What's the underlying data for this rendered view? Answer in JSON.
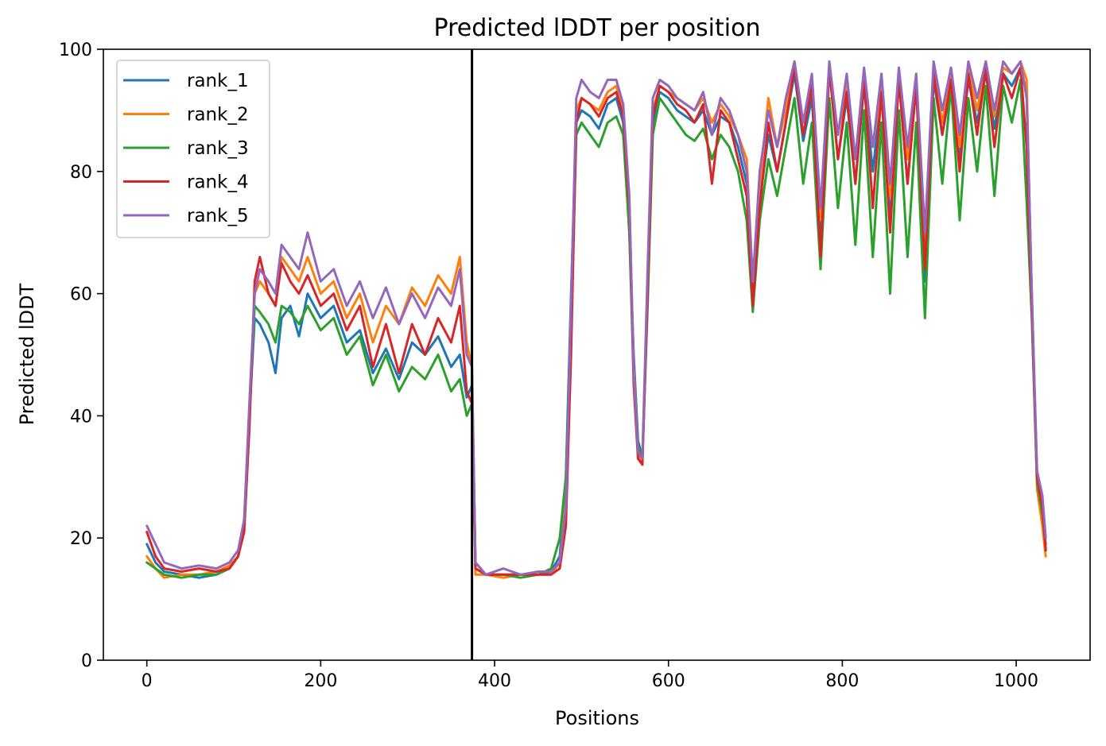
{
  "chart_data": {
    "type": "line",
    "title": "Predicted lDDT per position",
    "xlabel": "Positions",
    "ylabel": "Predicted lDDT",
    "xlim": [
      -50,
      1085
    ],
    "ylim": [
      0,
      100
    ],
    "xticks": [
      0,
      200,
      400,
      600,
      800,
      1000
    ],
    "yticks": [
      0,
      20,
      40,
      60,
      80,
      100
    ],
    "grid": false,
    "legend_position": "upper-left",
    "separator_x": 374,
    "series": [
      {
        "name": "rank_1",
        "color": "#1f77b4",
        "x": [
          0,
          10,
          20,
          40,
          60,
          80,
          95,
          105,
          112,
          118,
          124,
          130,
          140,
          148,
          155,
          165,
          175,
          185,
          200,
          215,
          230,
          245,
          260,
          275,
          290,
          305,
          320,
          335,
          350,
          360,
          368,
          374,
          378,
          390,
          410,
          430,
          450,
          465,
          475,
          482,
          488,
          494,
          500,
          510,
          520,
          530,
          540,
          548,
          555,
          560,
          565,
          570,
          576,
          582,
          590,
          600,
          610,
          620,
          630,
          640,
          650,
          660,
          670,
          680,
          690,
          697,
          705,
          715,
          725,
          735,
          745,
          755,
          765,
          775,
          785,
          795,
          805,
          815,
          825,
          835,
          845,
          855,
          865,
          875,
          885,
          895,
          905,
          915,
          925,
          935,
          945,
          955,
          965,
          975,
          985,
          995,
          1005,
          1012,
          1018,
          1024,
          1030,
          1034
        ],
        "y": [
          19,
          16,
          14.5,
          14,
          13.5,
          14,
          15,
          17,
          22,
          40,
          56,
          55,
          52,
          47,
          56,
          58,
          53,
          60,
          56,
          58,
          52,
          54,
          47,
          51,
          46,
          52,
          50,
          53,
          48,
          50,
          43,
          45,
          16,
          14,
          14,
          14,
          14,
          14.5,
          17,
          30,
          60,
          88,
          90,
          89,
          87,
          91,
          92,
          88,
          70,
          50,
          36,
          33,
          60,
          88,
          93,
          92,
          90,
          89,
          88,
          90,
          86,
          89,
          88,
          84,
          78,
          60,
          75,
          86,
          80,
          88,
          96,
          85,
          92,
          68,
          97,
          82,
          92,
          78,
          94,
          80,
          93,
          72,
          95,
          78,
          94,
          62,
          95,
          86,
          94,
          82,
          95,
          88,
          96,
          87,
          96,
          94,
          97,
          93,
          60,
          30,
          26,
          18
        ]
      },
      {
        "name": "rank_2",
        "color": "#ff7f0e",
        "x": [
          0,
          10,
          20,
          40,
          60,
          80,
          95,
          105,
          112,
          118,
          124,
          130,
          140,
          148,
          155,
          165,
          175,
          185,
          200,
          215,
          230,
          245,
          260,
          275,
          290,
          305,
          320,
          335,
          350,
          360,
          368,
          374,
          378,
          390,
          410,
          430,
          450,
          465,
          475,
          482,
          488,
          494,
          500,
          510,
          520,
          530,
          540,
          548,
          555,
          560,
          565,
          570,
          576,
          582,
          590,
          600,
          610,
          620,
          630,
          640,
          650,
          660,
          670,
          680,
          690,
          697,
          705,
          715,
          725,
          735,
          745,
          755,
          765,
          775,
          785,
          795,
          805,
          815,
          825,
          835,
          845,
          855,
          865,
          875,
          885,
          895,
          905,
          915,
          925,
          935,
          945,
          955,
          965,
          975,
          985,
          995,
          1005,
          1012,
          1018,
          1024,
          1030,
          1034
        ],
        "y": [
          17,
          15,
          13.5,
          14,
          14,
          14.5,
          15.5,
          17,
          22,
          42,
          60,
          62,
          60,
          58,
          66,
          64,
          62,
          66,
          60,
          62,
          56,
          60,
          52,
          58,
          55,
          61,
          58,
          63,
          60,
          66,
          52,
          48,
          14,
          14,
          13.5,
          14,
          14,
          14,
          16,
          26,
          58,
          90,
          92,
          91,
          90,
          93,
          94,
          90,
          75,
          48,
          34,
          32,
          62,
          90,
          94,
          93,
          92,
          91,
          90,
          92,
          88,
          91,
          89,
          86,
          82,
          62,
          78,
          92,
          84,
          90,
          98,
          88,
          95,
          72,
          97,
          86,
          94,
          82,
          96,
          84,
          94,
          76,
          96,
          82,
          95,
          66,
          97,
          88,
          96,
          84,
          97,
          90,
          98,
          89,
          97,
          96,
          98,
          95,
          58,
          28,
          22,
          17
        ]
      },
      {
        "name": "rank_3",
        "color": "#2ca02c",
        "x": [
          0,
          10,
          20,
          40,
          60,
          80,
          95,
          105,
          112,
          118,
          124,
          130,
          140,
          148,
          155,
          165,
          175,
          185,
          200,
          215,
          230,
          245,
          260,
          275,
          290,
          305,
          320,
          335,
          350,
          360,
          368,
          374,
          378,
          390,
          410,
          430,
          450,
          465,
          475,
          482,
          488,
          494,
          500,
          510,
          520,
          530,
          540,
          548,
          555,
          560,
          565,
          570,
          576,
          582,
          590,
          600,
          610,
          620,
          630,
          640,
          650,
          660,
          670,
          680,
          690,
          697,
          705,
          715,
          725,
          735,
          745,
          755,
          765,
          775,
          785,
          795,
          805,
          815,
          825,
          835,
          845,
          855,
          865,
          875,
          885,
          895,
          905,
          915,
          925,
          935,
          945,
          955,
          965,
          975,
          985,
          995,
          1005,
          1012,
          1018,
          1024,
          1030,
          1034
        ],
        "y": [
          16,
          15,
          14,
          13.5,
          14,
          14,
          15,
          17,
          23,
          40,
          58,
          57,
          55,
          52,
          58,
          57,
          55,
          58,
          54,
          56,
          50,
          53,
          45,
          50,
          44,
          48,
          46,
          50,
          44,
          46,
          40,
          42,
          15,
          14,
          14,
          13.5,
          14,
          15,
          20,
          30,
          55,
          86,
          88,
          86,
          84,
          88,
          89,
          86,
          70,
          46,
          35,
          33,
          58,
          86,
          92,
          90,
          88,
          86,
          85,
          87,
          82,
          86,
          84,
          80,
          72,
          57,
          72,
          82,
          76,
          84,
          92,
          78,
          88,
          64,
          92,
          74,
          88,
          68,
          90,
          66,
          88,
          60,
          90,
          66,
          88,
          56,
          92,
          78,
          94,
          72,
          92,
          80,
          94,
          76,
          94,
          88,
          95,
          75,
          56,
          29,
          24,
          19
        ]
      },
      {
        "name": "rank_4",
        "color": "#d62728",
        "x": [
          0,
          10,
          20,
          40,
          60,
          80,
          95,
          105,
          112,
          118,
          124,
          130,
          140,
          148,
          155,
          165,
          175,
          185,
          200,
          215,
          230,
          245,
          260,
          275,
          290,
          305,
          320,
          335,
          350,
          360,
          368,
          374,
          378,
          390,
          410,
          430,
          450,
          465,
          475,
          482,
          488,
          494,
          500,
          510,
          520,
          530,
          540,
          548,
          555,
          560,
          565,
          570,
          576,
          582,
          590,
          600,
          610,
          620,
          630,
          640,
          650,
          660,
          670,
          680,
          690,
          697,
          705,
          715,
          725,
          735,
          745,
          755,
          765,
          775,
          785,
          795,
          805,
          815,
          825,
          835,
          845,
          855,
          865,
          875,
          885,
          895,
          905,
          915,
          925,
          935,
          945,
          955,
          965,
          975,
          985,
          995,
          1005,
          1012,
          1018,
          1024,
          1030,
          1034
        ],
        "y": [
          21,
          17,
          15,
          14.5,
          15,
          14.5,
          15,
          17,
          21,
          38,
          62,
          66,
          60,
          58,
          65,
          62,
          60,
          63,
          58,
          60,
          54,
          58,
          48,
          55,
          47,
          55,
          50,
          56,
          52,
          58,
          44,
          42,
          15,
          14,
          14,
          14,
          14,
          14,
          15,
          22,
          50,
          88,
          92,
          91,
          89,
          92,
          93,
          89,
          74,
          45,
          33,
          32,
          60,
          89,
          94,
          93,
          91,
          90,
          88,
          91,
          78,
          90,
          88,
          82,
          76,
          58,
          74,
          88,
          80,
          88,
          97,
          86,
          94,
          66,
          97,
          82,
          93,
          78,
          95,
          74,
          93,
          70,
          95,
          78,
          94,
          64,
          96,
          86,
          95,
          80,
          96,
          86,
          97,
          84,
          96,
          92,
          97,
          84,
          57,
          30,
          25,
          18
        ]
      },
      {
        "name": "rank_5",
        "color": "#9467bd",
        "x": [
          0,
          10,
          20,
          40,
          60,
          80,
          95,
          105,
          112,
          118,
          124,
          130,
          140,
          148,
          155,
          165,
          175,
          185,
          200,
          215,
          230,
          245,
          260,
          275,
          290,
          305,
          320,
          335,
          350,
          360,
          368,
          374,
          378,
          390,
          410,
          430,
          450,
          465,
          475,
          482,
          488,
          494,
          500,
          510,
          520,
          530,
          540,
          548,
          555,
          560,
          565,
          570,
          576,
          582,
          590,
          600,
          610,
          620,
          630,
          640,
          650,
          660,
          670,
          680,
          690,
          697,
          705,
          715,
          725,
          735,
          745,
          755,
          765,
          775,
          785,
          795,
          805,
          815,
          825,
          835,
          845,
          855,
          865,
          875,
          885,
          895,
          905,
          915,
          925,
          935,
          945,
          955,
          965,
          975,
          985,
          995,
          1005,
          1012,
          1018,
          1024,
          1030,
          1034
        ],
        "y": [
          22,
          19,
          16,
          15,
          15.5,
          15,
          16,
          18,
          23,
          42,
          60,
          64,
          62,
          60,
          68,
          66,
          64,
          70,
          62,
          64,
          58,
          62,
          56,
          61,
          55,
          60,
          56,
          61,
          58,
          64,
          50,
          48,
          16,
          14,
          15,
          14,
          14.5,
          14.5,
          16,
          25,
          58,
          92,
          95,
          93,
          92,
          95,
          95,
          91,
          76,
          47,
          34,
          33,
          64,
          92,
          95,
          94,
          92,
          91,
          90,
          93,
          86,
          92,
          90,
          86,
          80,
          62,
          80,
          90,
          84,
          92,
          98,
          88,
          96,
          74,
          98,
          86,
          96,
          82,
          97,
          84,
          96,
          78,
          97,
          84,
          96,
          70,
          98,
          90,
          97,
          86,
          98,
          92,
          98,
          90,
          98,
          96,
          98,
          92,
          60,
          31,
          27,
          20
        ]
      }
    ]
  }
}
